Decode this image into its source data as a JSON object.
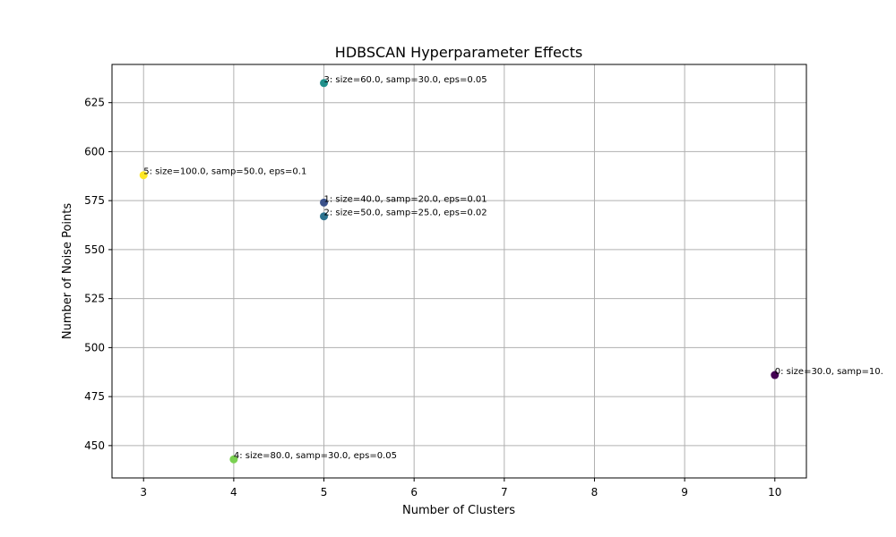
{
  "chart_data": {
    "type": "scatter",
    "title": "HDBSCAN Hyperparameter Effects",
    "xlabel": "Number of Clusters",
    "ylabel": "Number of Noise Points",
    "xlim": [
      2.65,
      10.35
    ],
    "ylim": [
      433.5,
      644.5
    ],
    "x_ticks": [
      3,
      4,
      5,
      6,
      7,
      8,
      9,
      10
    ],
    "y_ticks": [
      450,
      475,
      500,
      525,
      550,
      575,
      600,
      625
    ],
    "grid": true,
    "colormap": "viridis",
    "points": [
      {
        "x": 10,
        "y": 486,
        "label": "0: size=30.0, samp=10.",
        "color": "#440154"
      },
      {
        "x": 5,
        "y": 574,
        "label": "1: size=40.0, samp=20.0, eps=0.01",
        "color": "#3b528b"
      },
      {
        "x": 5,
        "y": 567,
        "label": "2: size=50.0, samp=25.0, eps=0.02",
        "color": "#2c728e"
      },
      {
        "x": 5,
        "y": 635,
        "label": "3: size=60.0, samp=30.0, eps=0.05",
        "color": "#21918c"
      },
      {
        "x": 4,
        "y": 443,
        "label": "4: size=80.0, samp=30.0, eps=0.05",
        "color": "#7ad151"
      },
      {
        "x": 3,
        "y": 588,
        "label": "5: size=100.0, samp=50.0, eps=0.1",
        "color": "#fde725"
      }
    ]
  }
}
